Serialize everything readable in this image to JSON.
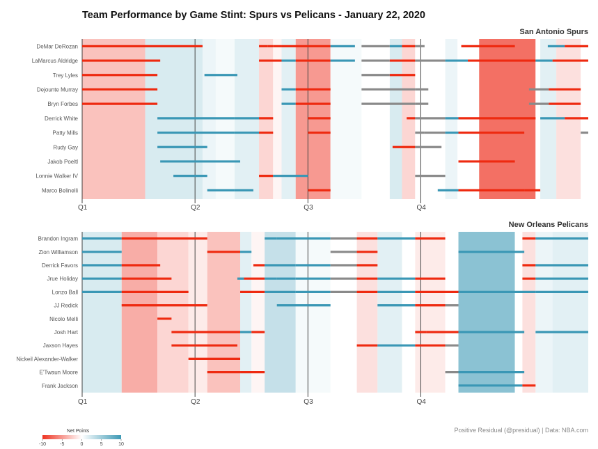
{
  "chart_data": {
    "type": "timeline",
    "title": "Team Performance by Game Stint: Spurs vs Pelicans - January 22, 2020",
    "quarters": [
      "Q1",
      "Q2",
      "Q3",
      "Q4"
    ],
    "legend": {
      "title": "Net Points",
      "ticks": [
        "-10",
        "-5",
        "0",
        "5",
        "10"
      ],
      "min": -10,
      "max": 10,
      "neg_color": "#ee3322",
      "pos_color": "#3d99b5"
    },
    "caption": "Positive Residual (@presidual)  |  Data: NBA.com",
    "panels": [
      {
        "team": "San Antonio Spurs",
        "stints": [
          {
            "start": 0,
            "end": 6.7,
            "net": -3
          },
          {
            "start": 6.7,
            "end": 12.8,
            "net": 2
          },
          {
            "start": 12.8,
            "end": 14.2,
            "net": 1
          },
          {
            "start": 14.2,
            "end": 16.2,
            "net": 0.5
          },
          {
            "start": 16.2,
            "end": 18.8,
            "net": 1.5
          },
          {
            "start": 18.8,
            "end": 20.3,
            "net": -2
          },
          {
            "start": 20.3,
            "end": 21.2,
            "net": -0.5
          },
          {
            "start": 21.2,
            "end": 22.7,
            "net": 1.5
          },
          {
            "start": 22.7,
            "end": 26.4,
            "net": -5
          },
          {
            "start": 26.4,
            "end": 29.7,
            "net": 0.5
          },
          {
            "start": 29.7,
            "end": 32.7,
            "net": 0
          },
          {
            "start": 32.7,
            "end": 34.0,
            "net": 2
          },
          {
            "start": 34.0,
            "end": 35.4,
            "net": -2
          },
          {
            "start": 35.4,
            "end": 38.6,
            "net": 0
          },
          {
            "start": 38.6,
            "end": 39.9,
            "net": 1
          },
          {
            "start": 39.9,
            "end": 42.2,
            "net": 0
          },
          {
            "start": 42.2,
            "end": 48.2,
            "net": -7
          },
          {
            "start": 48.2,
            "end": 48.7,
            "net": 0
          },
          {
            "start": 48.7,
            "end": 50.4,
            "net": 1.5
          },
          {
            "start": 50.4,
            "end": 53.0,
            "net": -1.5
          },
          {
            "start": 53.0,
            "end": 53.8,
            "net": 0
          }
        ],
        "players": [
          {
            "name": "DeMar DeRozan",
            "segments": [
              [
                0,
                12.8
              ],
              [
                18.8,
                19.7
              ],
              [
                19.7,
                20.3
              ],
              [
                20.3,
                21.2
              ],
              [
                21.2,
                26.4
              ],
              [
                26.4,
                29.0
              ],
              [
                29.7,
                32.7
              ],
              [
                32.7,
                34.0
              ],
              [
                34.0,
                35.4
              ],
              [
                35.4,
                36.4
              ],
              [
                40.3,
                46.0
              ],
              [
                49.5,
                51.3
              ],
              [
                51.3,
                53.8
              ]
            ]
          },
          {
            "name": "LaMarcus Aldridge",
            "segments": [
              [
                0,
                8.3
              ],
              [
                18.8,
                21.2
              ],
              [
                21.2,
                22.7
              ],
              [
                22.7,
                26.4
              ],
              [
                26.4,
                29.0
              ],
              [
                29.7,
                32.7
              ],
              [
                32.7,
                35.4
              ],
              [
                35.4,
                38.6
              ],
              [
                38.6,
                41.0
              ],
              [
                41.0,
                48.2
              ],
              [
                48.2,
                50.0
              ],
              [
                50.0,
                53.8
              ]
            ]
          },
          {
            "name": "Trey Lyles",
            "segments": [
              [
                0,
                8.0
              ],
              [
                13.0,
                16.5
              ],
              [
                29.7,
                32.7
              ],
              [
                32.7,
                35.4
              ]
            ]
          },
          {
            "name": "Dejounte Murray",
            "segments": [
              [
                0,
                8.0
              ],
              [
                21.2,
                22.7
              ],
              [
                22.7,
                26.4
              ],
              [
                29.7,
                35.4
              ],
              [
                35.4,
                36.8
              ],
              [
                47.5,
                49.6
              ],
              [
                49.6,
                53.0
              ]
            ]
          },
          {
            "name": "Bryn Forbes",
            "segments": [
              [
                0,
                8.0
              ],
              [
                21.2,
                22.7
              ],
              [
                22.7,
                26.4
              ],
              [
                29.7,
                35.4
              ],
              [
                35.4,
                36.8
              ],
              [
                47.5,
                49.6
              ],
              [
                49.6,
                53.0
              ]
            ]
          },
          {
            "name": "Derrick White",
            "segments": [
              [
                8.0,
                16.2
              ],
              [
                16.2,
                18.8
              ],
              [
                18.8,
                20.3
              ],
              [
                24.0,
                26.4
              ],
              [
                34.5,
                35.4
              ],
              [
                35.4,
                38.6
              ],
              [
                38.6,
                40.0
              ],
              [
                40.0,
                48.2
              ],
              [
                48.7,
                51.3
              ],
              [
                51.3,
                53.8
              ]
            ]
          },
          {
            "name": "Patty Mills",
            "segments": [
              [
                8.0,
                16.2
              ],
              [
                16.2,
                18.8
              ],
              [
                18.8,
                20.3
              ],
              [
                24.0,
                26.4
              ],
              [
                35.4,
                36.4
              ],
              [
                36.4,
                38.6
              ],
              [
                38.6,
                40.0
              ],
              [
                40.0,
                47.0
              ],
              [
                53.0,
                53.8
              ]
            ]
          },
          {
            "name": "Rudy Gay",
            "segments": [
              [
                8.0,
                13.3
              ],
              [
                33.0,
                35.4
              ],
              [
                35.4,
                38.2
              ]
            ]
          },
          {
            "name": "Jakob Poeltl",
            "segments": [
              [
                8.3,
                16.8
              ],
              [
                40.0,
                46.0
              ]
            ]
          },
          {
            "name": "Lonnie Walker IV",
            "segments": [
              [
                9.7,
                13.3
              ],
              [
                18.8,
                20.3
              ],
              [
                20.3,
                24.0
              ],
              [
                35.4,
                38.6
              ]
            ]
          },
          {
            "name": "Marco Belinelli",
            "segments": [
              [
                13.3,
                16.2
              ],
              [
                16.2,
                18.2
              ],
              [
                24.0,
                26.4
              ],
              [
                37.8,
                40.0
              ],
              [
                40.0,
                47.0
              ],
              [
                47.0,
                48.7
              ]
            ]
          }
        ]
      },
      {
        "team": "New Orleans Pelicans",
        "stints": [
          {
            "start": 0,
            "end": 4.2,
            "net": 2
          },
          {
            "start": 4.2,
            "end": 8.0,
            "net": -4
          },
          {
            "start": 8.0,
            "end": 11.3,
            "net": -2
          },
          {
            "start": 11.3,
            "end": 13.3,
            "net": -1
          },
          {
            "start": 13.3,
            "end": 16.8,
            "net": -3
          },
          {
            "start": 16.8,
            "end": 18.0,
            "net": 1.5
          },
          {
            "start": 18.0,
            "end": 19.4,
            "net": -0.5
          },
          {
            "start": 19.4,
            "end": 22.7,
            "net": 3
          },
          {
            "start": 22.7,
            "end": 26.4,
            "net": 0.5
          },
          {
            "start": 26.4,
            "end": 29.2,
            "net": 0
          },
          {
            "start": 29.2,
            "end": 31.4,
            "net": -1.5
          },
          {
            "start": 31.4,
            "end": 34.0,
            "net": 1.5
          },
          {
            "start": 34.0,
            "end": 35.4,
            "net": 0
          },
          {
            "start": 35.4,
            "end": 38.6,
            "net": -1
          },
          {
            "start": 38.6,
            "end": 40.0,
            "net": 0
          },
          {
            "start": 40.0,
            "end": 46.0,
            "net": 6
          },
          {
            "start": 46.0,
            "end": 46.8,
            "net": 0
          },
          {
            "start": 46.8,
            "end": 48.2,
            "net": -1.5
          },
          {
            "start": 48.2,
            "end": 50.0,
            "net": 1
          },
          {
            "start": 50.0,
            "end": 53.8,
            "net": 1.5
          }
        ],
        "players": [
          {
            "name": "Brandon Ingram",
            "segments": [
              [
                0,
                4.2
              ],
              [
                4.2,
                13.3
              ],
              [
                19.4,
                20.7
              ],
              [
                20.7,
                24.0
              ],
              [
                24.0,
                26.4
              ],
              [
                26.4,
                29.2
              ],
              [
                29.2,
                31.4
              ],
              [
                31.4,
                35.4
              ],
              [
                35.4,
                38.6
              ],
              [
                46.8,
                48.2
              ],
              [
                48.2,
                53.8
              ]
            ]
          },
          {
            "name": "Zion Williamson",
            "segments": [
              [
                0,
                4.2
              ],
              [
                13.3,
                16.8
              ],
              [
                16.8,
                18.0
              ],
              [
                26.4,
                29.2
              ],
              [
                29.2,
                31.4
              ],
              [
                40.0,
                47.0
              ]
            ]
          },
          {
            "name": "Derrick Favors",
            "segments": [
              [
                0,
                4.2
              ],
              [
                4.2,
                8.3
              ],
              [
                18.2,
                19.4
              ],
              [
                19.4,
                22.7
              ],
              [
                22.7,
                26.4
              ],
              [
                26.4,
                29.2
              ],
              [
                29.2,
                31.4
              ],
              [
                46.8,
                48.2
              ],
              [
                48.2,
                53.8
              ]
            ]
          },
          {
            "name": "Jrue Holiday",
            "segments": [
              [
                0,
                4.2
              ],
              [
                4.2,
                9.5
              ],
              [
                16.5,
                17.2
              ],
              [
                17.2,
                19.4
              ],
              [
                19.4,
                20.7
              ],
              [
                20.7,
                22.7
              ],
              [
                22.7,
                26.4
              ],
              [
                26.4,
                29.2
              ],
              [
                29.2,
                31.4
              ],
              [
                31.4,
                35.4
              ],
              [
                35.4,
                38.6
              ],
              [
                46.8,
                48.2
              ],
              [
                48.2,
                53.8
              ]
            ]
          },
          {
            "name": "Lonzo Ball",
            "segments": [
              [
                0,
                4.2
              ],
              [
                4.2,
                11.3
              ],
              [
                16.8,
                19.4
              ],
              [
                19.4,
                22.7
              ],
              [
                22.7,
                26.4
              ],
              [
                26.4,
                29.2
              ],
              [
                29.2,
                31.4
              ],
              [
                31.4,
                35.4
              ],
              [
                35.4,
                40.0
              ],
              [
                40.0,
                48.2
              ],
              [
                48.2,
                53.8
              ]
            ]
          },
          {
            "name": "JJ Redick",
            "segments": [
              [
                4.2,
                13.3
              ],
              [
                20.7,
                24.0
              ],
              [
                24.0,
                26.4
              ],
              [
                31.4,
                35.4
              ],
              [
                35.4,
                38.6
              ],
              [
                38.6,
                40.0
              ]
            ]
          },
          {
            "name": "Nicolo Melli",
            "segments": [
              [
                8.0,
                9.5
              ]
            ]
          },
          {
            "name": "Josh Hart",
            "segments": [
              [
                9.5,
                16.8
              ],
              [
                16.8,
                18.0
              ],
              [
                18.0,
                19.4
              ],
              [
                35.4,
                36.6
              ],
              [
                36.6,
                40.0
              ],
              [
                40.0,
                47.0
              ],
              [
                48.2,
                53.8
              ]
            ]
          },
          {
            "name": "Jaxson Hayes",
            "segments": [
              [
                9.5,
                16.5
              ],
              [
                29.2,
                31.4
              ],
              [
                31.4,
                35.4
              ],
              [
                35.4,
                38.6
              ],
              [
                38.6,
                40.0
              ]
            ]
          },
          {
            "name": "Nickeil Alexander-Walker",
            "segments": [
              [
                11.3,
                16.8
              ]
            ]
          },
          {
            "name": "E'Twaun Moore",
            "segments": [
              [
                13.3,
                16.8
              ],
              [
                16.8,
                19.4
              ],
              [
                38.6,
                40.0
              ],
              [
                40.0,
                47.0
              ]
            ]
          },
          {
            "name": "Frank Jackson",
            "segments": [
              [
                40.0,
                46.8
              ],
              [
                46.8,
                48.2
              ]
            ]
          }
        ]
      }
    ]
  }
}
